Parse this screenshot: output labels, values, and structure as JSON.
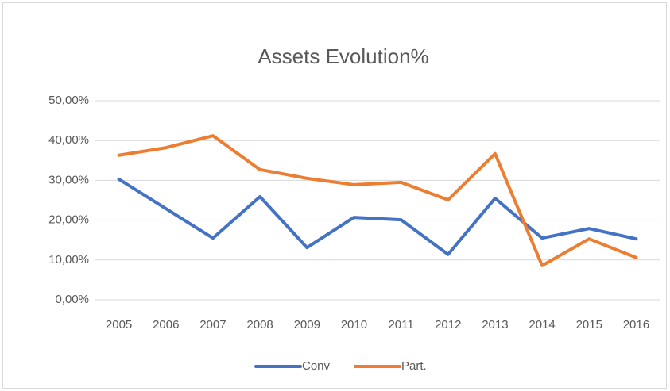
{
  "chart_data": {
    "type": "line",
    "title": "Assets Evolution%",
    "categories": [
      "2005",
      "2006",
      "2007",
      "2008",
      "2009",
      "2010",
      "2011",
      "2012",
      "2013",
      "2014",
      "2015",
      "2016"
    ],
    "series": [
      {
        "name": "Conv",
        "color": "#4472c4",
        "values": [
          30.3,
          22.9,
          15.5,
          25.9,
          13.1,
          20.7,
          20.1,
          11.4,
          25.5,
          15.5,
          17.9,
          15.3
        ]
      },
      {
        "name": "Part.",
        "color": "#ed7d31",
        "values": [
          36.3,
          38.2,
          41.2,
          32.7,
          30.5,
          28.9,
          29.5,
          25.1,
          36.7,
          8.6,
          15.3,
          10.6
        ]
      }
    ],
    "ylim": [
      0,
      50
    ],
    "yticks": [
      {
        "value": 0,
        "label": "0,00%"
      },
      {
        "value": 10,
        "label": "10,00%"
      },
      {
        "value": 20,
        "label": "20,00%"
      },
      {
        "value": 30,
        "label": "30,00%"
      },
      {
        "value": 40,
        "label": "40,00%"
      },
      {
        "value": 50,
        "label": "50,00%"
      }
    ],
    "grid": true,
    "legend": "bottom"
  }
}
